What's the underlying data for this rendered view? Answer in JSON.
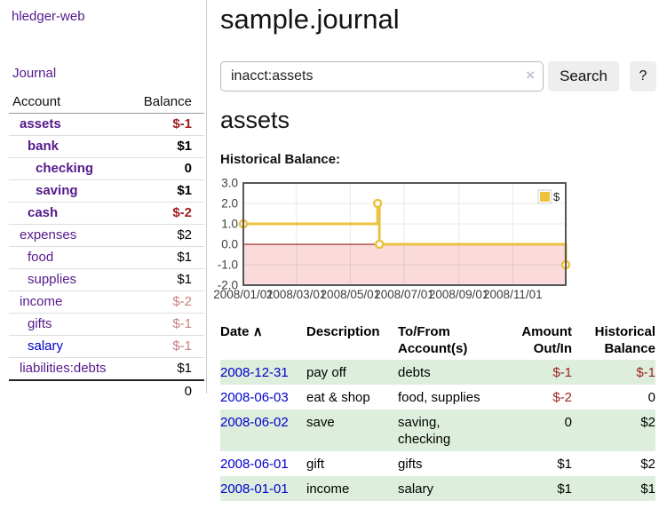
{
  "colors": {
    "link-purple": "#551a8b",
    "link-blue": "#0000cc",
    "neg-red": "#9e2021",
    "faded-red": "#c98080",
    "stripe-green": "#ddeedd",
    "button-bg": "#eeeeee",
    "border-gray": "#cccccc"
  },
  "sidebar": {
    "brand": "hledger-web",
    "journal_link": "Journal",
    "accounts_table": {
      "col_account": "Account",
      "col_balance": "Balance",
      "rows": [
        {
          "name": "assets",
          "indent": 1,
          "bold": true,
          "link_color": "purple",
          "balance": "$-1",
          "balance_style": "neg"
        },
        {
          "name": "bank",
          "indent": 2,
          "bold": true,
          "link_color": "purple",
          "balance": "$1",
          "balance_style": "plain"
        },
        {
          "name": "checking",
          "indent": 3,
          "bold": true,
          "link_color": "purple",
          "balance": "0",
          "balance_style": "plain"
        },
        {
          "name": "saving",
          "indent": 3,
          "bold": true,
          "link_color": "purple",
          "balance": "$1",
          "balance_style": "plain"
        },
        {
          "name": "cash",
          "indent": 2,
          "bold": true,
          "link_color": "purple",
          "balance": "$-2",
          "balance_style": "neg"
        },
        {
          "name": "expenses",
          "indent": 1,
          "bold": false,
          "link_color": "purple",
          "balance": "$2",
          "balance_style": "plain"
        },
        {
          "name": "food",
          "indent": 2,
          "bold": false,
          "link_color": "purple",
          "balance": "$1",
          "balance_style": "plain"
        },
        {
          "name": "supplies",
          "indent": 2,
          "bold": false,
          "link_color": "purple",
          "balance": "$1",
          "balance_style": "plain"
        },
        {
          "name": "income",
          "indent": 1,
          "bold": false,
          "link_color": "purple",
          "balance": "$-2",
          "balance_style": "faded"
        },
        {
          "name": "gifts",
          "indent": 2,
          "bold": false,
          "link_color": "purple",
          "balance": "$-1",
          "balance_style": "faded"
        },
        {
          "name": "salary",
          "indent": 2,
          "bold": false,
          "link_color": "blue",
          "balance": "$-1",
          "balance_style": "faded"
        },
        {
          "name": "liabilities:debts",
          "indent": 1,
          "bold": false,
          "link_color": "purple",
          "balance": "$1",
          "balance_style": "plain"
        }
      ],
      "total": "0"
    }
  },
  "main": {
    "title": "sample.journal",
    "search": {
      "value": "inacct:assets",
      "clear_icon": "×",
      "search_button": "Search",
      "help_button": "?"
    },
    "account_heading": "assets",
    "chart_heading": "Historical Balance:",
    "register_table": {
      "headers": {
        "date": "Date",
        "sort_icon": "∧",
        "description": "Description",
        "tofrom": "To/From Account(s)",
        "amount": "Amount Out/In",
        "balance": "Historical Balance"
      },
      "rows": [
        {
          "date": "2008-12-31",
          "description": "pay off",
          "tofrom": "debts",
          "amount": "$-1",
          "amount_neg": true,
          "balance": "$-1",
          "balance_neg": true,
          "striped": true
        },
        {
          "date": "2008-06-03",
          "description": "eat & shop",
          "tofrom": "food, supplies",
          "amount": "$-2",
          "amount_neg": true,
          "balance": "0",
          "balance_neg": false,
          "striped": false
        },
        {
          "date": "2008-06-02",
          "description": "save",
          "tofrom": "saving,\nchecking",
          "amount": "0",
          "amount_neg": false,
          "balance": "$2",
          "balance_neg": false,
          "striped": true
        },
        {
          "date": "2008-06-01",
          "description": "gift",
          "tofrom": "gifts",
          "amount": "$1",
          "amount_neg": false,
          "balance": "$2",
          "balance_neg": false,
          "striped": false
        },
        {
          "date": "2008-01-01",
          "description": "income",
          "tofrom": "salary",
          "amount": "$1",
          "amount_neg": false,
          "balance": "$1",
          "balance_neg": false,
          "striped": true
        }
      ]
    }
  },
  "chart_data": {
    "type": "line",
    "step": true,
    "title": "Historical Balance",
    "series": [
      {
        "name": "$",
        "color": "#edc240",
        "points": [
          [
            "2008-01-01",
            1.0
          ],
          [
            "2008-06-01",
            2.0
          ],
          [
            "2008-06-03",
            0.0
          ],
          [
            "2008-12-31",
            -1.0
          ]
        ]
      }
    ],
    "x_ticks": [
      "2008/01/01",
      "2008/03/01",
      "2008/05/01",
      "2008/07/01",
      "2008/09/01",
      "2008/11/01"
    ],
    "y_ticks": [
      "3.0",
      "2.0",
      "1.0",
      "0.0",
      "-1.0",
      "-2.0"
    ],
    "xlim": [
      "2008-01-01",
      "2008-12-31"
    ],
    "ylim": [
      -2,
      3
    ],
    "grid": true,
    "negative_region_fill": "#fadada",
    "zero_line_color": "#8b0000",
    "gridline_color": "rgba(0,0,0,0.08)",
    "border_color": "#565656",
    "tick_label_color": "#3d3d3d",
    "legend": {
      "label": "$",
      "position": "top-right"
    }
  }
}
